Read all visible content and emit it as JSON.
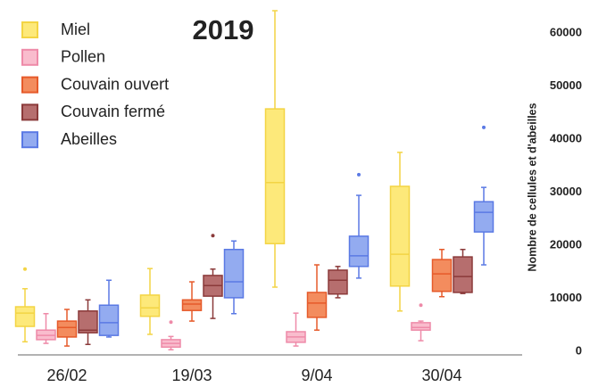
{
  "chart_data": {
    "type": "boxplot",
    "title": "2019",
    "y_label": "Nombre de cellules et d'abeilles",
    "categories": [
      "26/02",
      "19/03",
      "9/04",
      "30/04"
    ],
    "ylim": [
      0,
      65000
    ],
    "yticks": [
      0,
      10000,
      20000,
      30000,
      40000,
      50000,
      60000
    ],
    "grid": false,
    "legend": "top-left",
    "series": [
      {
        "name": "Miel",
        "color": "#fde97a",
        "stroke": "#f3d444",
        "values": [
          {
            "min": 1800,
            "q1": 4700,
            "median": 7200,
            "q3": 8400,
            "max": 11800,
            "outliers": [
              15500
            ]
          },
          {
            "min": 3200,
            "q1": 6600,
            "median": 8200,
            "q3": 10600,
            "max": 15600
          },
          {
            "min": 12100,
            "q1": 20300,
            "median": 31800,
            "q3": 45700,
            "max": 64200
          },
          {
            "min": 7600,
            "q1": 12300,
            "median": 18300,
            "q3": 31100,
            "max": 37500
          }
        ]
      },
      {
        "name": "Pollen",
        "color": "#f9bccd",
        "stroke": "#ee8aa8",
        "values": [
          {
            "min": 1500,
            "q1": 2200,
            "median": 3000,
            "q3": 4000,
            "max": 7100
          },
          {
            "min": 300,
            "q1": 800,
            "median": 1500,
            "q3": 2200,
            "max": 2800,
            "outliers": [
              5500
            ]
          },
          {
            "min": 1000,
            "q1": 1700,
            "median": 2700,
            "q3": 3700,
            "max": 7200
          },
          {
            "min": 2000,
            "q1": 4000,
            "median": 4500,
            "q3": 5400,
            "max": 5700,
            "outliers": [
              8700
            ]
          }
        ]
      },
      {
        "name": "Couvain ouvert",
        "color": "#f38c5e",
        "stroke": "#e65a2a",
        "values": [
          {
            "min": 1000,
            "q1": 2700,
            "median": 4500,
            "q3": 5700,
            "max": 7900
          },
          {
            "min": 5700,
            "q1": 7700,
            "median": 8900,
            "q3": 9700,
            "max": 13100
          },
          {
            "min": 4000,
            "q1": 6400,
            "median": 9100,
            "q3": 11100,
            "max": 16300
          },
          {
            "min": 10300,
            "q1": 11300,
            "median": 14600,
            "q3": 17300,
            "max": 19200
          }
        ]
      },
      {
        "name": "Couvain fermé",
        "color": "#b66e6e",
        "stroke": "#8b3a3a",
        "values": [
          {
            "min": 1300,
            "q1": 3500,
            "median": 4000,
            "q3": 7600,
            "max": 9700
          },
          {
            "min": 6200,
            "q1": 10400,
            "median": 12400,
            "q3": 14300,
            "max": 15500,
            "outliers": [
              21800
            ]
          },
          {
            "min": 10100,
            "q1": 10800,
            "median": 13400,
            "q3": 15300,
            "max": 16000
          },
          {
            "min": 10900,
            "q1": 11100,
            "median": 14100,
            "q3": 17800,
            "max": 19200
          }
        ]
      },
      {
        "name": "Abeilles",
        "color": "#93abf0",
        "stroke": "#5a79e4",
        "values": [
          {
            "min": 2700,
            "q1": 3000,
            "median": 5400,
            "q3": 8700,
            "max": 13400
          },
          {
            "min": 7100,
            "q1": 10100,
            "median": 13100,
            "q3": 19200,
            "max": 20800
          },
          {
            "min": 13800,
            "q1": 16000,
            "median": 18000,
            "q3": 21700,
            "max": 29400,
            "outliers": [
              33300
            ]
          },
          {
            "min": 16300,
            "q1": 22500,
            "median": 26200,
            "q3": 28200,
            "max": 30900,
            "outliers": [
              42200
            ]
          }
        ]
      }
    ]
  }
}
